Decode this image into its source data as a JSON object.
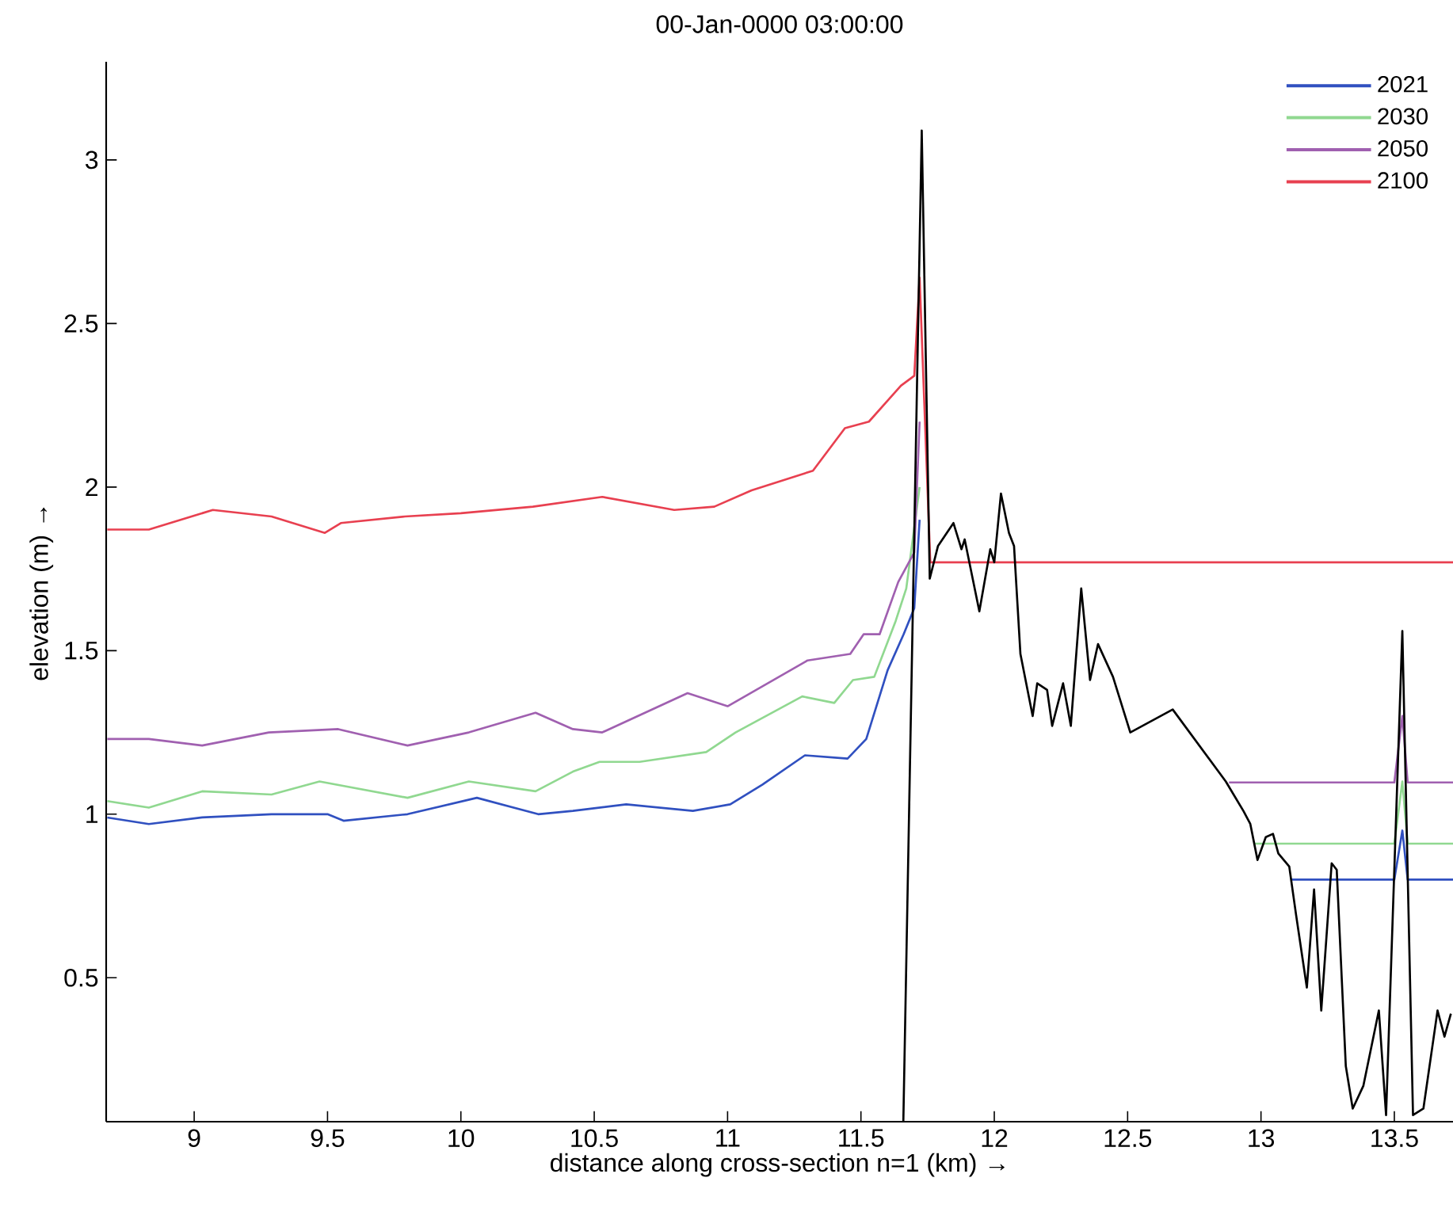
{
  "chart_data": {
    "type": "line",
    "title": "00-Jan-0000 03:00:00",
    "xlabel": "distance along cross-section n=1 (km) →",
    "ylabel": "elevation (m) →",
    "xlim": [
      8.67,
      13.72
    ],
    "ylim": [
      0.06,
      3.3
    ],
    "xticks": [
      9,
      9.5,
      10,
      10.5,
      11,
      11.5,
      12,
      12.5,
      13,
      13.5
    ],
    "yticks": [
      0.5,
      1,
      1.5,
      2,
      2.5,
      3
    ],
    "grid": false,
    "legend": "top right",
    "line_style": "solid",
    "marker": "none",
    "series": [
      {
        "name": "2021",
        "color": "#3050c0",
        "x": [
          8.674,
          8.83,
          9.03,
          9.29,
          9.5,
          9.56,
          9.8,
          10.06,
          10.29,
          10.42,
          10.62,
          10.87,
          11.01,
          11.13,
          11.29,
          11.45,
          11.52,
          11.6,
          11.66,
          11.7,
          11.72,
          null,
          13.114,
          13.5,
          13.53,
          13.55,
          13.72
        ],
        "values": [
          0.99,
          0.97,
          0.99,
          1.0,
          1.0,
          0.98,
          1.0,
          1.05,
          1.0,
          1.01,
          1.03,
          1.01,
          1.03,
          1.09,
          1.18,
          1.17,
          1.23,
          1.44,
          1.55,
          1.63,
          1.9,
          null,
          0.8,
          0.8,
          0.95,
          0.8,
          0.8
        ]
      },
      {
        "name": "2030",
        "color": "#90d890",
        "x": [
          8.674,
          8.83,
          9.03,
          9.29,
          9.47,
          9.8,
          10.03,
          10.28,
          10.42,
          10.52,
          10.67,
          10.92,
          11.03,
          11.28,
          11.4,
          11.47,
          11.55,
          11.63,
          11.67,
          11.72,
          null,
          12.973,
          13.5,
          13.53,
          13.55,
          13.72
        ],
        "values": [
          1.04,
          1.02,
          1.07,
          1.06,
          1.1,
          1.05,
          1.1,
          1.07,
          1.13,
          1.16,
          1.16,
          1.19,
          1.25,
          1.36,
          1.34,
          1.41,
          1.42,
          1.59,
          1.69,
          2.0,
          null,
          0.91,
          0.91,
          1.1,
          0.91,
          0.91
        ]
      },
      {
        "name": "2050",
        "color": "#a060b0",
        "x": [
          8.674,
          8.83,
          9.03,
          9.28,
          9.54,
          9.8,
          10.03,
          10.28,
          10.42,
          10.53,
          10.85,
          11.0,
          11.3,
          11.46,
          11.51,
          11.57,
          11.64,
          11.7,
          11.72,
          null,
          12.88,
          13.5,
          13.53,
          13.55,
          13.72
        ],
        "values": [
          1.23,
          1.23,
          1.21,
          1.25,
          1.26,
          1.21,
          1.25,
          1.31,
          1.26,
          1.25,
          1.37,
          1.33,
          1.47,
          1.49,
          1.55,
          1.55,
          1.71,
          1.8,
          2.2,
          null,
          1.097,
          1.097,
          1.3,
          1.097,
          1.097
        ]
      },
      {
        "name": "2100",
        "color": "#e84050",
        "x": [
          8.674,
          8.83,
          9.07,
          9.29,
          9.49,
          9.55,
          9.79,
          10.0,
          10.27,
          10.53,
          10.8,
          10.95,
          11.09,
          11.32,
          11.44,
          11.53,
          11.65,
          11.7,
          11.72,
          11.76,
          13.72
        ],
        "values": [
          1.87,
          1.87,
          1.93,
          1.91,
          1.86,
          1.89,
          1.91,
          1.92,
          1.94,
          1.97,
          1.93,
          1.94,
          1.99,
          2.05,
          2.18,
          2.2,
          2.31,
          2.34,
          2.64,
          1.77,
          1.77
        ]
      },
      {
        "color": "#000000",
        "x": [
          11.659,
          11.728,
          11.758,
          11.789,
          11.847,
          11.877,
          11.889,
          11.944,
          11.985,
          12.0,
          12.025,
          12.055,
          12.074,
          12.098,
          12.144,
          12.161,
          12.198,
          12.217,
          12.258,
          12.287,
          12.326,
          12.359,
          12.389,
          12.445,
          12.51,
          12.669,
          12.868,
          12.934,
          12.96,
          12.987,
          13.018,
          13.045,
          13.065,
          13.106,
          13.132,
          13.172,
          13.199,
          13.226,
          13.265,
          13.284,
          13.318,
          13.344,
          13.384,
          13.442,
          13.469,
          13.53,
          13.57,
          13.609,
          13.662,
          13.688,
          13.712
        ],
        "values": [
          0.06,
          3.09,
          1.72,
          1.82,
          1.89,
          1.81,
          1.84,
          1.62,
          1.81,
          1.77,
          1.98,
          1.86,
          1.82,
          1.49,
          1.3,
          1.4,
          1.38,
          1.27,
          1.4,
          1.27,
          1.69,
          1.41,
          1.52,
          1.42,
          1.25,
          1.32,
          1.1,
          1.01,
          0.97,
          0.86,
          0.93,
          0.94,
          0.88,
          0.84,
          0.69,
          0.47,
          0.77,
          0.4,
          0.85,
          0.83,
          0.23,
          0.1,
          0.17,
          0.4,
          0.08,
          1.56,
          0.08,
          0.1,
          0.4,
          0.32,
          0.39
        ]
      }
    ]
  }
}
